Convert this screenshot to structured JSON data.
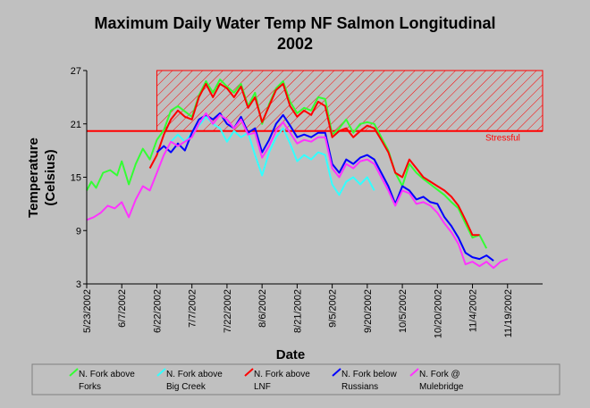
{
  "chart_data": {
    "type": "line",
    "title": "Maximum Daily Water Temp NF Salmon Longitudinal",
    "subtitle": "2002",
    "xlabel": "Date",
    "ylabel_line1": "Temperature",
    "ylabel_line2": "(Celsius)",
    "ylim": [
      3,
      27
    ],
    "yticks": [
      3,
      9,
      15,
      21,
      27
    ],
    "xlim": [
      "2002-05-23",
      "2002-12-04"
    ],
    "xticks": [
      "5/23/2002",
      "6/7/2002",
      "6/22/2002",
      "7/7/2002",
      "7/22/2002",
      "8/6/2002",
      "8/21/2002",
      "9/5/2002",
      "9/20/2002",
      "10/5/2002",
      "10/20/2002",
      "11/4/2002",
      "11/19/2002"
    ],
    "threshold": {
      "value": 20.2,
      "label": "Stressful",
      "band": [
        20.2,
        27
      ],
      "color": "#ff0000"
    },
    "grid": false,
    "legend_position": "bottom",
    "series": [
      {
        "name": "N. Fork above Forks",
        "color": "#33ff33",
        "points": [
          [
            "2002-05-23",
            13.5
          ],
          [
            "2002-05-25",
            14.5
          ],
          [
            "2002-05-27",
            13.8
          ],
          [
            "2002-05-30",
            15.5
          ],
          [
            "2002-06-02",
            15.8
          ],
          [
            "2002-06-05",
            15.2
          ],
          [
            "2002-06-07",
            16.8
          ],
          [
            "2002-06-10",
            14.2
          ],
          [
            "2002-06-13",
            16.5
          ],
          [
            "2002-06-16",
            18.2
          ],
          [
            "2002-06-19",
            17.0
          ],
          [
            "2002-06-22",
            19.2
          ],
          [
            "2002-06-25",
            20.3
          ],
          [
            "2002-06-28",
            22.5
          ],
          [
            "2002-07-01",
            23.0
          ],
          [
            "2002-07-04",
            22.4
          ],
          [
            "2002-07-07",
            21.8
          ],
          [
            "2002-07-10",
            24.2
          ],
          [
            "2002-07-13",
            25.8
          ],
          [
            "2002-07-16",
            24.5
          ],
          [
            "2002-07-19",
            26.0
          ],
          [
            "2002-07-22",
            25.2
          ],
          [
            "2002-07-25",
            24.5
          ],
          [
            "2002-07-28",
            25.5
          ],
          [
            "2002-07-31",
            23.0
          ],
          [
            "2002-08-03",
            24.5
          ],
          [
            "2002-08-06",
            21.0
          ],
          [
            "2002-08-09",
            23.2
          ],
          [
            "2002-08-12",
            25.0
          ],
          [
            "2002-08-15",
            25.8
          ],
          [
            "2002-08-18",
            23.5
          ],
          [
            "2002-08-21",
            22.2
          ],
          [
            "2002-08-24",
            22.8
          ],
          [
            "2002-08-27",
            22.5
          ],
          [
            "2002-08-30",
            24.0
          ],
          [
            "2002-09-02",
            23.8
          ],
          [
            "2002-09-05",
            19.8
          ],
          [
            "2002-09-08",
            20.5
          ],
          [
            "2002-09-11",
            21.5
          ],
          [
            "2002-09-14",
            20.0
          ],
          [
            "2002-09-17",
            21.0
          ],
          [
            "2002-09-20",
            21.2
          ],
          [
            "2002-09-23",
            21.0
          ],
          [
            "2002-09-26",
            19.5
          ],
          [
            "2002-09-29",
            18.0
          ],
          [
            "2002-10-02",
            15.5
          ],
          [
            "2002-10-05",
            14.0
          ],
          [
            "2002-10-08",
            16.5
          ],
          [
            "2002-10-11",
            15.5
          ],
          [
            "2002-10-14",
            14.8
          ],
          [
            "2002-10-17",
            14.2
          ],
          [
            "2002-10-20",
            13.6
          ],
          [
            "2002-10-23",
            13.0
          ],
          [
            "2002-10-26",
            12.2
          ],
          [
            "2002-10-29",
            11.5
          ],
          [
            "2002-11-01",
            9.8
          ],
          [
            "2002-11-04",
            8.2
          ],
          [
            "2002-11-07",
            8.5
          ],
          [
            "2002-11-10",
            7.0
          ]
        ]
      },
      {
        "name": "N. Fork above Big Creek",
        "color": "#33ffff",
        "points": [
          [
            "2002-06-28",
            19.0
          ],
          [
            "2002-07-01",
            19.8
          ],
          [
            "2002-07-04",
            19.0
          ],
          [
            "2002-07-07",
            20.0
          ],
          [
            "2002-07-10",
            20.8
          ],
          [
            "2002-07-13",
            21.8
          ],
          [
            "2002-07-16",
            21.0
          ],
          [
            "2002-07-19",
            20.5
          ],
          [
            "2002-07-22",
            19.0
          ],
          [
            "2002-07-25",
            20.2
          ],
          [
            "2002-07-28",
            19.5
          ],
          [
            "2002-07-31",
            20.0
          ],
          [
            "2002-08-03",
            17.5
          ],
          [
            "2002-08-06",
            15.2
          ],
          [
            "2002-08-09",
            17.8
          ],
          [
            "2002-08-12",
            19.5
          ],
          [
            "2002-08-15",
            20.5
          ],
          [
            "2002-08-18",
            18.8
          ],
          [
            "2002-08-21",
            16.8
          ],
          [
            "2002-08-24",
            17.5
          ],
          [
            "2002-08-27",
            17.0
          ],
          [
            "2002-08-30",
            17.8
          ],
          [
            "2002-09-02",
            17.5
          ],
          [
            "2002-09-05",
            14.2
          ],
          [
            "2002-09-08",
            13.0
          ],
          [
            "2002-09-11",
            14.5
          ],
          [
            "2002-09-14",
            15.0
          ],
          [
            "2002-09-17",
            14.2
          ],
          [
            "2002-09-20",
            15.0
          ],
          [
            "2002-09-23",
            13.5
          ]
        ]
      },
      {
        "name": "N. Fork above LNF",
        "color": "#ff0000",
        "points": [
          [
            "2002-06-19",
            16.0
          ],
          [
            "2002-06-22",
            17.5
          ],
          [
            "2002-06-25",
            19.8
          ],
          [
            "2002-06-28",
            21.5
          ],
          [
            "2002-07-01",
            22.5
          ],
          [
            "2002-07-04",
            21.8
          ],
          [
            "2002-07-07",
            21.5
          ],
          [
            "2002-07-10",
            24.0
          ],
          [
            "2002-07-13",
            25.5
          ],
          [
            "2002-07-16",
            24.0
          ],
          [
            "2002-07-19",
            25.5
          ],
          [
            "2002-07-22",
            25.0
          ],
          [
            "2002-07-25",
            24.0
          ],
          [
            "2002-07-28",
            25.2
          ],
          [
            "2002-07-31",
            22.8
          ],
          [
            "2002-08-03",
            24.0
          ],
          [
            "2002-08-06",
            21.2
          ],
          [
            "2002-08-09",
            23.0
          ],
          [
            "2002-08-12",
            24.8
          ],
          [
            "2002-08-15",
            25.5
          ],
          [
            "2002-08-18",
            23.0
          ],
          [
            "2002-08-21",
            21.8
          ],
          [
            "2002-08-24",
            22.5
          ],
          [
            "2002-08-27",
            22.0
          ],
          [
            "2002-08-30",
            23.5
          ],
          [
            "2002-09-02",
            23.0
          ],
          [
            "2002-09-05",
            19.5
          ],
          [
            "2002-09-08",
            20.2
          ],
          [
            "2002-09-11",
            20.5
          ],
          [
            "2002-09-14",
            19.5
          ],
          [
            "2002-09-17",
            20.2
          ],
          [
            "2002-09-20",
            20.8
          ],
          [
            "2002-09-23",
            20.5
          ],
          [
            "2002-09-26",
            19.2
          ],
          [
            "2002-09-29",
            17.8
          ],
          [
            "2002-10-02",
            15.5
          ],
          [
            "2002-10-05",
            15.0
          ],
          [
            "2002-10-08",
            17.0
          ],
          [
            "2002-10-11",
            16.0
          ],
          [
            "2002-10-14",
            15.0
          ],
          [
            "2002-10-17",
            14.5
          ],
          [
            "2002-10-20",
            14.0
          ],
          [
            "2002-10-23",
            13.5
          ],
          [
            "2002-10-26",
            12.8
          ],
          [
            "2002-10-29",
            11.8
          ],
          [
            "2002-11-01",
            10.2
          ],
          [
            "2002-11-04",
            8.5
          ],
          [
            "2002-11-07",
            8.5
          ]
        ]
      },
      {
        "name": "N. Fork below Russians",
        "color": "#0000ff",
        "points": [
          [
            "2002-06-22",
            17.8
          ],
          [
            "2002-06-25",
            18.5
          ],
          [
            "2002-06-28",
            17.8
          ],
          [
            "2002-07-01",
            18.8
          ],
          [
            "2002-07-04",
            18.0
          ],
          [
            "2002-07-07",
            20.0
          ],
          [
            "2002-07-10",
            21.5
          ],
          [
            "2002-07-13",
            22.0
          ],
          [
            "2002-07-16",
            21.5
          ],
          [
            "2002-07-19",
            22.2
          ],
          [
            "2002-07-22",
            21.0
          ],
          [
            "2002-07-25",
            20.5
          ],
          [
            "2002-07-28",
            21.8
          ],
          [
            "2002-07-31",
            20.0
          ],
          [
            "2002-08-03",
            20.5
          ],
          [
            "2002-08-06",
            17.8
          ],
          [
            "2002-08-09",
            19.2
          ],
          [
            "2002-08-12",
            21.0
          ],
          [
            "2002-08-15",
            22.0
          ],
          [
            "2002-08-18",
            20.8
          ],
          [
            "2002-08-21",
            19.5
          ],
          [
            "2002-08-24",
            19.8
          ],
          [
            "2002-08-27",
            19.5
          ],
          [
            "2002-08-30",
            20.0
          ],
          [
            "2002-09-02",
            20.0
          ],
          [
            "2002-09-05",
            16.5
          ],
          [
            "2002-09-08",
            15.5
          ],
          [
            "2002-09-11",
            17.0
          ],
          [
            "2002-09-14",
            16.5
          ],
          [
            "2002-09-17",
            17.2
          ],
          [
            "2002-09-20",
            17.5
          ],
          [
            "2002-09-23",
            17.0
          ],
          [
            "2002-09-26",
            15.5
          ],
          [
            "2002-09-29",
            14.0
          ],
          [
            "2002-10-02",
            12.0
          ],
          [
            "2002-10-05",
            14.0
          ],
          [
            "2002-10-08",
            13.5
          ],
          [
            "2002-10-11",
            12.5
          ],
          [
            "2002-10-14",
            12.8
          ],
          [
            "2002-10-17",
            12.2
          ],
          [
            "2002-10-20",
            12.0
          ],
          [
            "2002-10-23",
            10.5
          ],
          [
            "2002-10-26",
            9.5
          ],
          [
            "2002-10-29",
            8.2
          ],
          [
            "2002-11-01",
            6.5
          ],
          [
            "2002-11-04",
            6.0
          ],
          [
            "2002-11-07",
            5.8
          ],
          [
            "2002-11-10",
            6.2
          ],
          [
            "2002-11-13",
            5.6
          ]
        ]
      },
      {
        "name": "N. Fork @ Mulebridge",
        "color": "#ff33ff",
        "points": [
          [
            "2002-05-23",
            10.2
          ],
          [
            "2002-05-26",
            10.5
          ],
          [
            "2002-05-29",
            11.0
          ],
          [
            "2002-06-01",
            11.8
          ],
          [
            "2002-06-04",
            11.5
          ],
          [
            "2002-06-07",
            12.2
          ],
          [
            "2002-06-10",
            10.5
          ],
          [
            "2002-06-13",
            12.5
          ],
          [
            "2002-06-16",
            14.0
          ],
          [
            "2002-06-19",
            13.5
          ],
          [
            "2002-06-22",
            15.5
          ],
          [
            "2002-06-25",
            17.5
          ],
          [
            "2002-06-28",
            19.0
          ],
          [
            "2002-07-01",
            18.5
          ],
          [
            "2002-07-04",
            19.0
          ],
          [
            "2002-07-07",
            19.5
          ],
          [
            "2002-07-10",
            21.0
          ],
          [
            "2002-07-13",
            22.2
          ],
          [
            "2002-07-16",
            21.0
          ],
          [
            "2002-07-19",
            22.0
          ],
          [
            "2002-07-22",
            21.5
          ],
          [
            "2002-07-25",
            20.5
          ],
          [
            "2002-07-28",
            21.5
          ],
          [
            "2002-07-31",
            19.8
          ],
          [
            "2002-08-03",
            20.0
          ],
          [
            "2002-08-06",
            17.2
          ],
          [
            "2002-08-09",
            18.5
          ],
          [
            "2002-08-12",
            20.2
          ],
          [
            "2002-08-15",
            21.2
          ],
          [
            "2002-08-18",
            20.0
          ],
          [
            "2002-08-21",
            18.8
          ],
          [
            "2002-08-24",
            19.2
          ],
          [
            "2002-08-27",
            19.0
          ],
          [
            "2002-08-30",
            19.5
          ],
          [
            "2002-09-02",
            19.5
          ],
          [
            "2002-09-05",
            16.0
          ],
          [
            "2002-09-08",
            15.0
          ],
          [
            "2002-09-11",
            16.5
          ],
          [
            "2002-09-14",
            16.0
          ],
          [
            "2002-09-17",
            16.8
          ],
          [
            "2002-09-20",
            17.0
          ],
          [
            "2002-09-23",
            16.5
          ],
          [
            "2002-09-26",
            15.0
          ],
          [
            "2002-09-29",
            13.5
          ],
          [
            "2002-10-02",
            11.8
          ],
          [
            "2002-10-05",
            13.5
          ],
          [
            "2002-10-08",
            13.2
          ],
          [
            "2002-10-11",
            12.0
          ],
          [
            "2002-10-14",
            12.2
          ],
          [
            "2002-10-17",
            11.8
          ],
          [
            "2002-10-20",
            11.0
          ],
          [
            "2002-10-23",
            9.8
          ],
          [
            "2002-10-26",
            8.8
          ],
          [
            "2002-10-29",
            7.5
          ],
          [
            "2002-11-01",
            5.2
          ],
          [
            "2002-11-04",
            5.5
          ],
          [
            "2002-11-07",
            5.0
          ],
          [
            "2002-11-10",
            5.5
          ],
          [
            "2002-11-13",
            4.8
          ],
          [
            "2002-11-16",
            5.5
          ],
          [
            "2002-11-19",
            5.8
          ]
        ]
      }
    ]
  },
  "legend": {
    "items": [
      {
        "line1": "N. Fork above",
        "line2": "Forks",
        "color": "#33ff33"
      },
      {
        "line1": "N. Fork above",
        "line2": "Big Creek",
        "color": "#33ffff"
      },
      {
        "line1": "N. Fork above",
        "line2": "LNF",
        "color": "#ff0000"
      },
      {
        "line1": "N. Fork below",
        "line2": "Russians",
        "color": "#0000ff"
      },
      {
        "line1": "N. Fork @",
        "line2": "Mulebridge",
        "color": "#ff33ff"
      }
    ]
  }
}
